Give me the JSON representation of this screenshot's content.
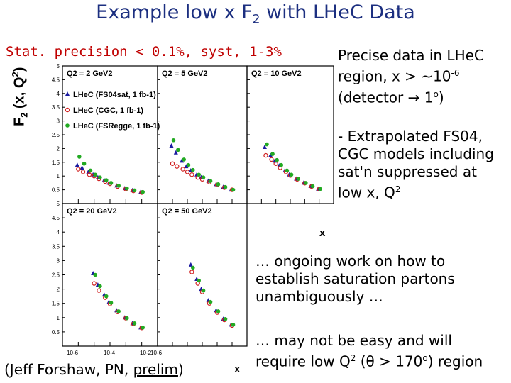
{
  "title": {
    "pre": "Example low x F",
    "sub": "2",
    "post": " with LHeC Data"
  },
  "stat_line": "Stat. precision < 0.1%, syst, 1-3%",
  "y_axis_label": "F2 (x, Q2)",
  "x_axis_label": "x",
  "notes": {
    "n1_line1": "Precise data in LHeC",
    "n1_line2": "region, x > ~10",
    "n1_sup": "-6",
    "n1_line3a": "(detector ",
    "n1_line3b": " 1",
    "n1_line3c": "o)",
    "n2_line1": "- Extrapolated FS04,",
    "n2_line2": "CGC models including",
    "n2_line3": "sat'n suppressed at",
    "n2_line4": "low x, Q",
    "n2_sup": "2",
    "n3_line1": "… ongoing work on how to",
    "n3_line2": "establish saturation partons",
    "n3_line3": "unambiguously …",
    "n4_line1": "… may not be easy and will",
    "n4_line2a": "require low Q",
    "n4_sup": "2",
    "n4_line2b": " (θ > 170",
    "n4_line2c": "o) region"
  },
  "credit": {
    "pre": "(Jeff Forshaw, PN, ",
    "prelim": "prelim",
    "post": ")"
  },
  "legend": [
    {
      "label": "LHeC (FS04sat, 1 fb-1)",
      "color": "#1a1aa0",
      "marker": "triangle"
    },
    {
      "label": "LHeC (CGC, 1 fb-1)",
      "color": "#d02020",
      "marker": "circle"
    },
    {
      "label": "LHeC (FSRegge, 1 fb-1)",
      "color": "#22aa22",
      "marker": "dot"
    }
  ],
  "y_ticks": [
    "5",
    "4.5",
    "4",
    "3.5",
    "3",
    "2.5",
    "2",
    "1.5",
    "1",
    "0.5"
  ],
  "x_ticks": [
    "10-6",
    "10-4",
    "10-2",
    "10-6"
  ],
  "chart_data": {
    "type": "scatter",
    "panels": [
      {
        "q2": "Q2 = 2 GeV2",
        "x": [
          1e-06,
          2e-06,
          5e-06,
          1e-05,
          2e-05,
          5e-05,
          0.0001,
          0.0003,
          0.001,
          0.003,
          0.01
        ],
        "series": [
          {
            "name": "LHeC (FS04sat, 1 fb-1)",
            "values": [
              1.4,
              1.3,
              1.15,
              1.05,
              0.95,
              0.85,
              0.75,
              0.65,
              0.55,
              0.48,
              0.42
            ]
          },
          {
            "name": "LHeC (CGC, 1 fb-1)",
            "values": [
              1.25,
              1.15,
              1.05,
              1.0,
              0.9,
              0.8,
              0.72,
              0.62,
              0.53,
              0.46,
              0.4
            ]
          },
          {
            "name": "LHeC (FSRegge, 1 fb-1)",
            "values": [
              1.7,
              1.45,
              1.2,
              1.05,
              0.95,
              0.85,
              0.75,
              0.65,
              0.55,
              0.48,
              0.42
            ]
          }
        ]
      },
      {
        "q2": "Q2 = 5 GeV2",
        "x": [
          1e-06,
          2e-06,
          5e-06,
          1e-05,
          2e-05,
          5e-05,
          0.0001,
          0.0003,
          0.001,
          0.003,
          0.01
        ],
        "series": [
          {
            "name": "LHeC (FS04sat, 1 fb-1)",
            "values": [
              2.1,
              1.85,
              1.55,
              1.35,
              1.2,
              1.05,
              0.95,
              0.82,
              0.7,
              0.6,
              0.5
            ]
          },
          {
            "name": "LHeC (CGC, 1 fb-1)",
            "values": [
              1.45,
              1.35,
              1.25,
              1.15,
              1.05,
              0.95,
              0.88,
              0.78,
              0.68,
              0.58,
              0.5
            ]
          },
          {
            "name": "LHeC (FSRegge, 1 fb-1)",
            "values": [
              2.3,
              1.95,
              1.6,
              1.4,
              1.22,
              1.05,
              0.95,
              0.82,
              0.7,
              0.6,
              0.5
            ]
          }
        ]
      },
      {
        "q2": "Q2 = 10 GeV2",
        "x": [
          2e-06,
          5e-06,
          1e-05,
          2e-05,
          5e-05,
          0.0001,
          0.0003,
          0.001,
          0.003,
          0.01
        ],
        "series": [
          {
            "name": "LHeC (FS04sat, 1 fb-1)",
            "values": [
              2.05,
              1.75,
              1.55,
              1.38,
              1.2,
              1.05,
              0.9,
              0.75,
              0.63,
              0.53
            ]
          },
          {
            "name": "LHeC (CGC, 1 fb-1)",
            "values": [
              1.75,
              1.6,
              1.45,
              1.3,
              1.15,
              1.02,
              0.88,
              0.74,
              0.62,
              0.52
            ]
          },
          {
            "name": "LHeC (FSRegge, 1 fb-1)",
            "values": [
              2.15,
              1.8,
              1.58,
              1.4,
              1.2,
              1.05,
              0.9,
              0.75,
              0.63,
              0.53
            ]
          }
        ]
      },
      {
        "q2": "Q2 = 20 GeV2",
        "x": [
          1e-05,
          2e-05,
          5e-05,
          0.0001,
          0.0003,
          0.001,
          0.003,
          0.01
        ],
        "series": [
          {
            "name": "LHeC (FS04sat, 1 fb-1)",
            "values": [
              2.55,
              2.15,
              1.8,
              1.55,
              1.25,
              1.0,
              0.8,
              0.65
            ]
          },
          {
            "name": "LHeC (CGC, 1 fb-1)",
            "values": [
              2.2,
              1.95,
              1.7,
              1.48,
              1.2,
              0.98,
              0.78,
              0.64
            ]
          },
          {
            "name": "LHeC (FSRegge, 1 fb-1)",
            "values": [
              2.5,
              2.1,
              1.75,
              1.52,
              1.22,
              0.98,
              0.8,
              0.65
            ]
          }
        ]
      },
      {
        "q2": "Q2 = 50 GeV2",
        "x": [
          2e-05,
          5e-05,
          0.0001,
          0.0003,
          0.001,
          0.003,
          0.01
        ],
        "series": [
          {
            "name": "LHeC (FS04sat, 1 fb-1)",
            "values": [
              2.85,
              2.35,
              2.0,
              1.6,
              1.25,
              0.95,
              0.75
            ]
          },
          {
            "name": "LHeC (CGC, 1 fb-1)",
            "values": [
              2.6,
              2.2,
              1.9,
              1.5,
              1.18,
              0.92,
              0.72
            ]
          },
          {
            "name": "LHeC (FSRegge, 1 fb-1)",
            "values": [
              2.75,
              2.3,
              1.95,
              1.55,
              1.22,
              0.95,
              0.75
            ]
          }
        ]
      }
    ],
    "xlabel": "x",
    "ylabel": "F2 (x, Q2)",
    "xscale": "log",
    "xlim": [
      1e-07,
      0.1
    ],
    "ylim": [
      0,
      5
    ]
  }
}
